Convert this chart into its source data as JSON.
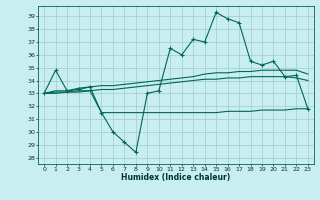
{
  "xlabel": "Humidex (Indice chaleur)",
  "background_color": "#c8eef0",
  "grid_color": "#a0ccc8",
  "line_color": "#006655",
  "xlim": [
    -0.5,
    23.5
  ],
  "ylim": [
    27.5,
    39.8
  ],
  "yticks": [
    28,
    29,
    30,
    31,
    32,
    33,
    34,
    35,
    36,
    37,
    38,
    39
  ],
  "xticks": [
    0,
    1,
    2,
    3,
    4,
    5,
    6,
    7,
    8,
    9,
    10,
    11,
    12,
    13,
    14,
    15,
    16,
    17,
    18,
    19,
    20,
    21,
    22,
    23
  ],
  "line1_x": [
    0,
    1,
    2,
    3,
    4,
    5,
    6,
    7,
    8,
    9,
    10,
    11,
    12,
    13,
    14,
    15,
    16,
    17,
    18,
    19,
    20,
    21,
    22,
    23
  ],
  "line1_y": [
    33.0,
    34.8,
    33.2,
    33.3,
    33.5,
    31.5,
    30.0,
    29.2,
    28.4,
    33.0,
    33.2,
    36.5,
    36.0,
    37.2,
    37.0,
    39.3,
    38.8,
    38.5,
    35.5,
    35.2,
    35.5,
    34.3,
    34.4,
    31.8
  ],
  "line2_x": [
    0,
    1,
    2,
    3,
    4,
    5,
    6,
    7,
    8,
    9,
    10,
    11,
    12,
    13,
    14,
    15,
    16,
    17,
    18,
    19,
    20,
    21,
    22,
    23
  ],
  "line2_y": [
    33.0,
    33.2,
    33.2,
    33.4,
    33.5,
    33.6,
    33.6,
    33.7,
    33.8,
    33.9,
    34.0,
    34.1,
    34.2,
    34.3,
    34.5,
    34.6,
    34.6,
    34.7,
    34.7,
    34.8,
    34.8,
    34.8,
    34.8,
    34.5
  ],
  "line3_x": [
    0,
    1,
    2,
    3,
    4,
    5,
    6,
    7,
    8,
    9,
    10,
    11,
    12,
    13,
    14,
    15,
    16,
    17,
    18,
    19,
    20,
    21,
    22,
    23
  ],
  "line3_y": [
    33.0,
    33.1,
    33.1,
    33.2,
    33.2,
    33.3,
    33.3,
    33.4,
    33.5,
    33.6,
    33.7,
    33.8,
    33.9,
    34.0,
    34.1,
    34.1,
    34.2,
    34.2,
    34.3,
    34.3,
    34.3,
    34.3,
    34.2,
    34.0
  ],
  "line4_x": [
    0,
    1,
    2,
    3,
    4,
    5,
    6,
    7,
    8,
    9,
    10,
    11,
    12,
    13,
    14,
    15,
    16,
    17,
    18,
    19,
    20,
    21,
    22,
    23
  ],
  "line4_y": [
    33.0,
    33.0,
    33.1,
    33.1,
    33.2,
    31.5,
    31.5,
    31.5,
    31.5,
    31.5,
    31.5,
    31.5,
    31.5,
    31.5,
    31.5,
    31.5,
    31.6,
    31.6,
    31.6,
    31.7,
    31.7,
    31.7,
    31.8,
    31.8
  ]
}
